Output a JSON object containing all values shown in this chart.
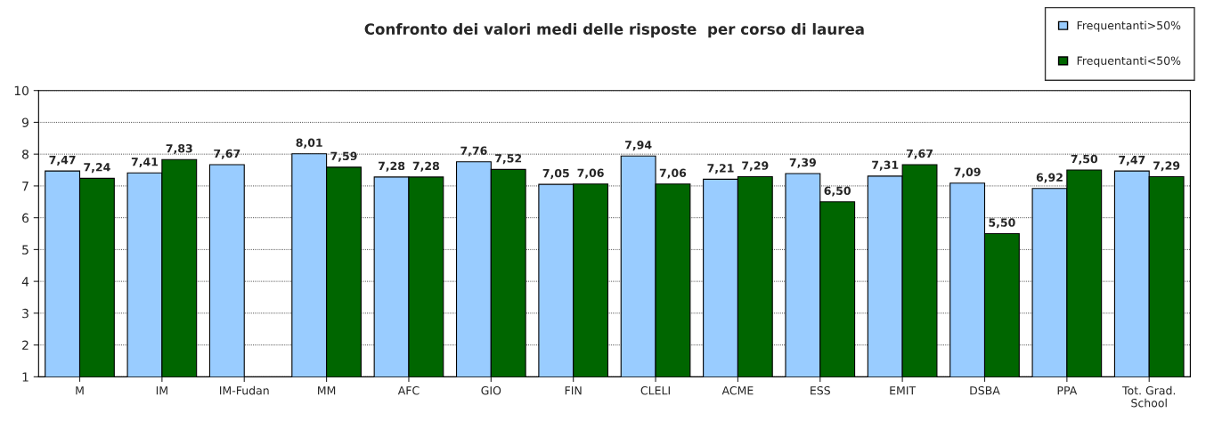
{
  "chart_data": {
    "type": "bar",
    "title": "Confronto dei valori medi delle risposte  per corso di laurea",
    "categories": [
      "M",
      "IM",
      "IM-Fudan",
      "MM",
      "AFC",
      "GIO",
      "FIN",
      "CLELI",
      "ACME",
      "ESS",
      "EMIT",
      "DSBA",
      "PPA",
      "Tot. Grad.\nSchool"
    ],
    "series": [
      {
        "name": "Frequentanti>50%",
        "color": "#99ccff",
        "values": [
          7.47,
          7.41,
          7.67,
          8.01,
          7.28,
          7.76,
          7.05,
          7.94,
          7.21,
          7.39,
          7.31,
          7.09,
          6.92,
          7.47
        ],
        "value_labels": [
          "7,47",
          "7,41",
          "7,67",
          "8,01",
          "7,28",
          "7,76",
          "7,05",
          "7,94",
          "7,21",
          "7,39",
          "7,31",
          "7,09",
          "6,92",
          "7,47"
        ]
      },
      {
        "name": "Frequentanti<50%",
        "color": "#006600",
        "values": [
          7.24,
          7.83,
          null,
          7.59,
          7.28,
          7.52,
          7.06,
          7.06,
          7.29,
          6.5,
          7.67,
          5.5,
          7.5,
          7.29
        ],
        "value_labels": [
          "7,24",
          "7,83",
          null,
          "7,59",
          "7,28",
          "7,52",
          "7,06",
          "7,06",
          "7,29",
          "6,50",
          "7,67",
          "5,50",
          "7,50",
          "7,29"
        ]
      }
    ],
    "ylim": [
      1,
      10
    ],
    "yticks": [
      1,
      2,
      3,
      4,
      5,
      6,
      7,
      8,
      9,
      10
    ],
    "grid": "y",
    "legend": "top right"
  }
}
